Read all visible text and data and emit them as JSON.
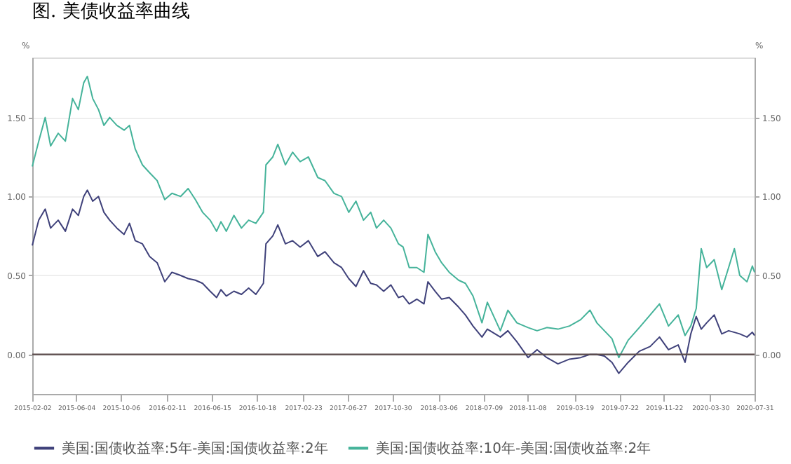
{
  "chart_data": {
    "type": "line",
    "title": "图. 美债收益率曲线",
    "ylabel": "%",
    "y2label": "%",
    "xlim": [
      "2015-02-02",
      "2020-07-31"
    ],
    "xticks": [
      "2015-02-02",
      "2015-06-04",
      "2015-10-06",
      "2016-02-11",
      "2016-06-15",
      "2016-10-18",
      "2017-02-23",
      "2017-06-27",
      "2017-10-30",
      "2018-03-06",
      "2018-07-09",
      "2018-11-08",
      "2019-03-19",
      "2019-07-22",
      "2019-11-22",
      "2020-03-30",
      "2020-07-31"
    ],
    "ylim": [
      -0.25,
      1.88
    ],
    "yticks": [
      {
        "value": 0,
        "label": "0.00"
      },
      {
        "value": 0.5,
        "label": "0.50"
      },
      {
        "value": 1,
        "label": "1.00"
      },
      {
        "value": 1.5,
        "label": "1.50"
      }
    ],
    "y2lim": [
      -0.25,
      1.88
    ],
    "y2ticks": [
      {
        "value": 0,
        "label": "0.00"
      },
      {
        "value": 0.5,
        "label": "0.50"
      },
      {
        "value": 1,
        "label": "1.00"
      },
      {
        "value": 1.5,
        "label": "1.50"
      }
    ],
    "grid": "y",
    "legend": "bottom",
    "marker": "none",
    "line_style": "solid",
    "ref_lines": [
      {
        "axis": "y2",
        "value": 0,
        "color": "#5a4a4a"
      }
    ],
    "series": [
      {
        "name": "美国:国债收益率:5年-美国:国债收益率:2年",
        "color": "#3f417a",
        "x": [
          "2015-02-02",
          "2015-02-20",
          "2015-03-10",
          "2015-03-25",
          "2015-04-15",
          "2015-05-05",
          "2015-05-25",
          "2015-06-10",
          "2015-06-25",
          "2015-07-05",
          "2015-07-20",
          "2015-08-05",
          "2015-08-20",
          "2015-09-05",
          "2015-09-25",
          "2015-10-15",
          "2015-10-30",
          "2015-11-15",
          "2015-12-05",
          "2015-12-25",
          "2016-01-15",
          "2016-02-05",
          "2016-02-25",
          "2016-03-20",
          "2016-04-10",
          "2016-04-30",
          "2016-05-20",
          "2016-06-10",
          "2016-06-28",
          "2016-07-10",
          "2016-07-25",
          "2016-08-15",
          "2016-09-05",
          "2016-09-25",
          "2016-10-15",
          "2016-11-05",
          "2016-11-12",
          "2016-12-01",
          "2016-12-15",
          "2017-01-05",
          "2017-01-25",
          "2017-02-15",
          "2017-03-10",
          "2017-04-05",
          "2017-04-25",
          "2017-05-20",
          "2017-06-10",
          "2017-06-30",
          "2017-07-20",
          "2017-08-10",
          "2017-08-30",
          "2017-09-15",
          "2017-10-05",
          "2017-10-25",
          "2017-11-15",
          "2017-11-28",
          "2017-12-15",
          "2018-01-05",
          "2018-01-25",
          "2018-02-05",
          "2018-02-25",
          "2018-03-15",
          "2018-04-05",
          "2018-05-01",
          "2018-05-20",
          "2018-06-10",
          "2018-07-05",
          "2018-07-20",
          "2018-08-25",
          "2018-09-15",
          "2018-10-10",
          "2018-11-10",
          "2018-12-05",
          "2019-01-01",
          "2019-02-01",
          "2019-03-05",
          "2019-04-05",
          "2019-05-01",
          "2019-05-20",
          "2019-06-10",
          "2019-07-01",
          "2019-07-20",
          "2019-08-15",
          "2019-09-15",
          "2019-10-15",
          "2019-11-10",
          "2019-12-05",
          "2020-01-01",
          "2020-01-20",
          "2020-02-05",
          "2020-02-20",
          "2020-03-05",
          "2020-03-20",
          "2020-04-10",
          "2020-05-01",
          "2020-05-20",
          "2020-06-05",
          "2020-06-20",
          "2020-07-10",
          "2020-07-25",
          "2020-07-31"
        ],
        "values": [
          0.69,
          0.85,
          0.92,
          0.8,
          0.85,
          0.78,
          0.92,
          0.88,
          1.0,
          1.04,
          0.97,
          1.0,
          0.9,
          0.85,
          0.8,
          0.76,
          0.83,
          0.72,
          0.7,
          0.62,
          0.58,
          0.46,
          0.52,
          0.5,
          0.48,
          0.47,
          0.45,
          0.4,
          0.36,
          0.41,
          0.37,
          0.4,
          0.38,
          0.42,
          0.38,
          0.45,
          0.7,
          0.75,
          0.82,
          0.7,
          0.72,
          0.68,
          0.72,
          0.62,
          0.65,
          0.58,
          0.55,
          0.48,
          0.43,
          0.53,
          0.45,
          0.44,
          0.4,
          0.44,
          0.36,
          0.37,
          0.32,
          0.35,
          0.32,
          0.46,
          0.4,
          0.35,
          0.36,
          0.3,
          0.25,
          0.18,
          0.11,
          0.16,
          0.11,
          0.15,
          0.08,
          -0.02,
          0.03,
          -0.02,
          -0.06,
          -0.03,
          -0.02,
          0.0,
          0.0,
          -0.01,
          -0.05,
          -0.12,
          -0.05,
          0.02,
          0.05,
          0.11,
          0.03,
          0.06,
          -0.05,
          0.13,
          0.24,
          0.16,
          0.2,
          0.25,
          0.13,
          0.15,
          0.14,
          0.13,
          0.11,
          0.14,
          0.12
        ]
      },
      {
        "name": "美国:国债收益率:10年-美国:国债收益率:2年",
        "color": "#45b39a",
        "x": [
          "2015-02-02",
          "2015-02-20",
          "2015-03-10",
          "2015-03-25",
          "2015-04-15",
          "2015-05-05",
          "2015-05-25",
          "2015-06-10",
          "2015-06-25",
          "2015-07-05",
          "2015-07-20",
          "2015-08-05",
          "2015-08-20",
          "2015-09-05",
          "2015-09-25",
          "2015-10-15",
          "2015-10-30",
          "2015-11-15",
          "2015-12-05",
          "2015-12-25",
          "2016-01-15",
          "2016-02-05",
          "2016-02-25",
          "2016-03-20",
          "2016-04-10",
          "2016-04-30",
          "2016-05-20",
          "2016-06-10",
          "2016-06-28",
          "2016-07-10",
          "2016-07-25",
          "2016-08-15",
          "2016-09-05",
          "2016-09-25",
          "2016-10-15",
          "2016-11-05",
          "2016-11-12",
          "2016-12-01",
          "2016-12-15",
          "2017-01-05",
          "2017-01-25",
          "2017-02-15",
          "2017-03-10",
          "2017-04-05",
          "2017-04-25",
          "2017-05-20",
          "2017-06-10",
          "2017-06-30",
          "2017-07-20",
          "2017-08-10",
          "2017-08-30",
          "2017-09-15",
          "2017-10-05",
          "2017-10-25",
          "2017-11-15",
          "2017-11-28",
          "2017-12-15",
          "2018-01-05",
          "2018-01-25",
          "2018-02-05",
          "2018-02-25",
          "2018-03-15",
          "2018-04-05",
          "2018-05-01",
          "2018-05-20",
          "2018-06-10",
          "2018-07-05",
          "2018-07-20",
          "2018-08-25",
          "2018-09-15",
          "2018-10-10",
          "2018-11-10",
          "2018-12-05",
          "2019-01-01",
          "2019-02-01",
          "2019-03-05",
          "2019-04-05",
          "2019-05-01",
          "2019-05-20",
          "2019-06-10",
          "2019-07-01",
          "2019-07-20",
          "2019-08-15",
          "2019-09-15",
          "2019-10-15",
          "2019-11-10",
          "2019-12-05",
          "2020-01-01",
          "2020-01-20",
          "2020-02-05",
          "2020-02-20",
          "2020-03-05",
          "2020-03-20",
          "2020-04-10",
          "2020-05-01",
          "2020-05-20",
          "2020-06-05",
          "2020-06-20",
          "2020-07-10",
          "2020-07-25",
          "2020-07-31"
        ],
        "values": [
          1.19,
          1.35,
          1.5,
          1.32,
          1.4,
          1.35,
          1.62,
          1.55,
          1.72,
          1.76,
          1.62,
          1.55,
          1.45,
          1.5,
          1.45,
          1.42,
          1.45,
          1.3,
          1.2,
          1.15,
          1.1,
          0.98,
          1.02,
          1.0,
          1.05,
          0.98,
          0.9,
          0.85,
          0.78,
          0.84,
          0.78,
          0.88,
          0.8,
          0.85,
          0.83,
          0.9,
          1.2,
          1.25,
          1.33,
          1.2,
          1.28,
          1.22,
          1.25,
          1.12,
          1.1,
          1.02,
          1.0,
          0.9,
          0.97,
          0.85,
          0.9,
          0.8,
          0.85,
          0.8,
          0.7,
          0.68,
          0.55,
          0.55,
          0.52,
          0.76,
          0.65,
          0.58,
          0.52,
          0.47,
          0.45,
          0.37,
          0.2,
          0.33,
          0.15,
          0.28,
          0.2,
          0.17,
          0.15,
          0.17,
          0.16,
          0.18,
          0.22,
          0.28,
          0.2,
          0.15,
          0.1,
          -0.02,
          0.09,
          0.17,
          0.25,
          0.32,
          0.18,
          0.25,
          0.12,
          0.18,
          0.29,
          0.67,
          0.55,
          0.6,
          0.41,
          0.55,
          0.67,
          0.5,
          0.46,
          0.56,
          0.52
        ]
      }
    ]
  }
}
